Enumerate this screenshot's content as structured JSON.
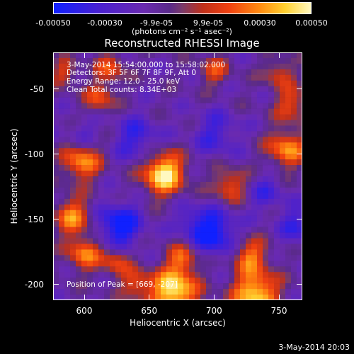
{
  "colorbar": {
    "ticks": [
      "-0.00050",
      "-0.00030",
      "-9.9e-05",
      "9.9e-05",
      "0.00030",
      "0.00050"
    ],
    "unit_label": "(photons cm⁻² s⁻¹ asec⁻²)"
  },
  "chart_data": {
    "type": "heatmap",
    "title": "Reconstructed RHESSI Image",
    "xlabel": "Heliocentric X (arcsec)",
    "ylabel": "Heliocentric Y (arcsec)",
    "xlim": [
      576,
      768
    ],
    "ylim": [
      -212,
      -22
    ],
    "xticks": [
      "600",
      "650",
      "700",
      "750"
    ],
    "yticks": [
      "-50",
      "-100",
      "-150",
      "-200"
    ],
    "zlim": [
      -0.0005,
      0.0005
    ],
    "annotations": [
      "3-May-2014 15:54:00.000 to 15:58:02.000",
      "Detectors: 3F 5F 6F 7F 8F 9F, Att 0",
      "Energy Range: 12.0 - 25.0 keV",
      "Clean    Total counts: 8.34E+03"
    ],
    "peak_label": "Position of Peak = [669, -207]",
    "grid": false
  },
  "footer": {
    "timestamp": "3-May-2014 20:03"
  }
}
